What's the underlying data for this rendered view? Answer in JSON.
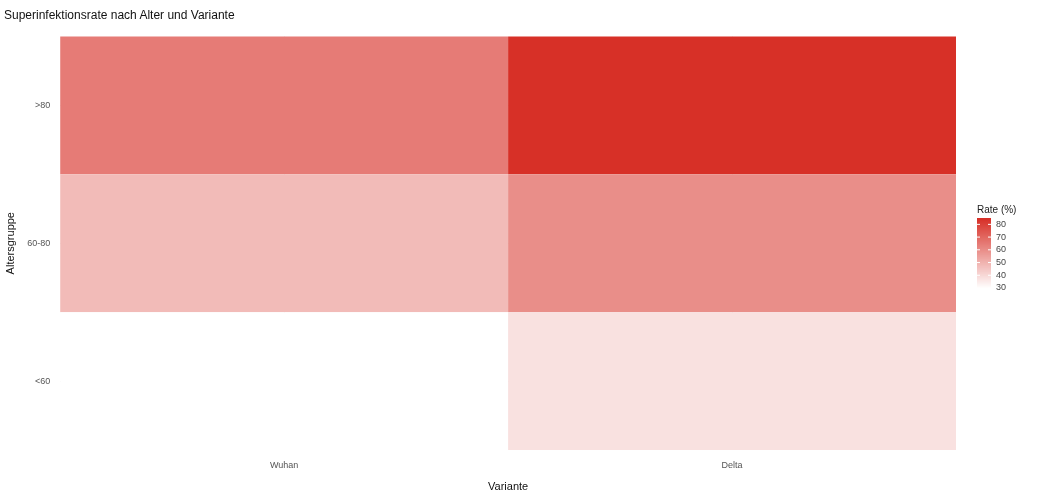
{
  "chart_data": {
    "type": "heatmap",
    "title": "Superinfektionsrate nach Alter und Variante",
    "xlabel": "Variante",
    "ylabel": "Altersgruppe",
    "clabel": "Rate (%)",
    "categories": [
      "Wuhan",
      "Delta"
    ],
    "y_categories": [
      ">80",
      "60-80",
      "<60"
    ],
    "cells": [
      [
        65,
        85
      ],
      [
        48,
        60
      ],
      [
        30,
        38
      ]
    ],
    "clim": [
      30,
      85
    ],
    "cticks": [
      30,
      40,
      50,
      60,
      70,
      80
    ],
    "grid": true
  }
}
